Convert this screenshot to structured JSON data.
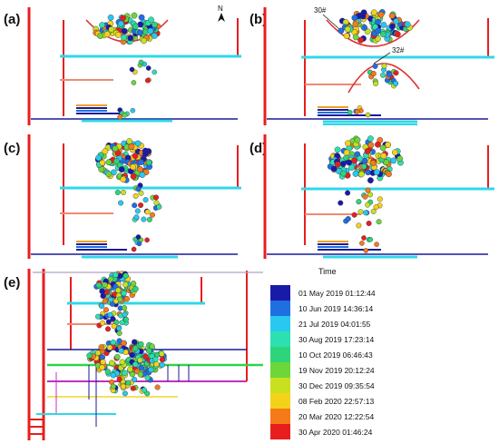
{
  "panels": [
    {
      "label": "(a)"
    },
    {
      "label": "(b)"
    },
    {
      "label": "(c)"
    },
    {
      "label": "(d)"
    },
    {
      "label": "(e)"
    }
  ],
  "compass": {
    "letter": "N",
    "icon": "north-arrow-icon"
  },
  "annotations": {
    "label_30": "30#",
    "label_32": "32#"
  },
  "legend": {
    "title": "Time",
    "entries": [
      {
        "date": "01 May 2019 01:12:44",
        "color": "#1a1aa8"
      },
      {
        "date": "10 Jun 2019 14:36:14",
        "color": "#1f6fe0"
      },
      {
        "date": "21 Jul 2019 04:01:55",
        "color": "#29c8f0"
      },
      {
        "date": "30 Aug 2019 17:23:14",
        "color": "#2de0b0"
      },
      {
        "date": "10 Oct 2019 06:46:43",
        "color": "#2ed47a"
      },
      {
        "date": "19 Nov 2019 20:12:24",
        "color": "#6cd63a"
      },
      {
        "date": "30 Dec 2019 09:35:54",
        "color": "#c8e020"
      },
      {
        "date": "08 Feb 2020 22:57:13",
        "color": "#f5d21a"
      },
      {
        "date": "20 Mar 2020 12:22:54",
        "color": "#f57a1a"
      },
      {
        "date": "30 Apr 2020 01:46:24",
        "color": "#e81e1e"
      }
    ]
  },
  "colors": {
    "shaft": "#e81e1e",
    "roadway_cyan": "#2fd8e8",
    "roadway_blue": "#1a1a9a",
    "roadway_salmon": "#f08a70",
    "roadway_orange": "#f0a020"
  }
}
